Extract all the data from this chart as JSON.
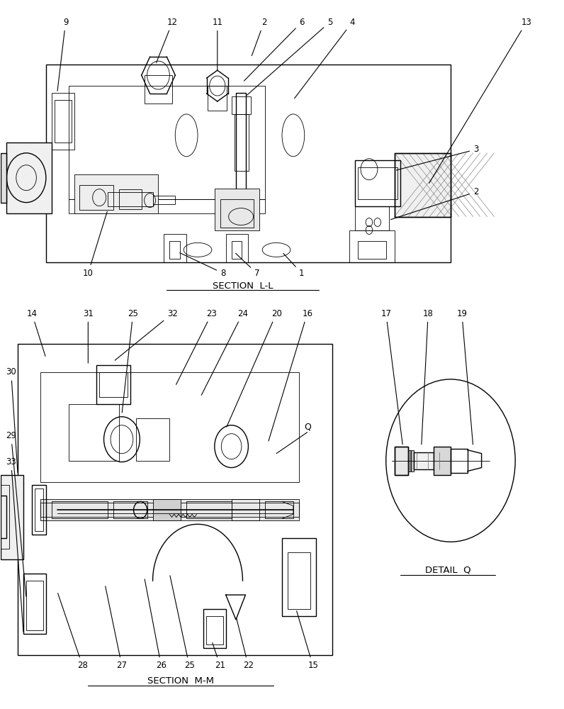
{
  "background_color": "#ffffff",
  "line_color": "#000000",
  "fig_width": 7.96,
  "fig_height": 10.0,
  "section_ll_label": "SECTION  L-L",
  "section_mm_label": "SECTION  M-M",
  "detail_q_label": "DETAIL  Q"
}
